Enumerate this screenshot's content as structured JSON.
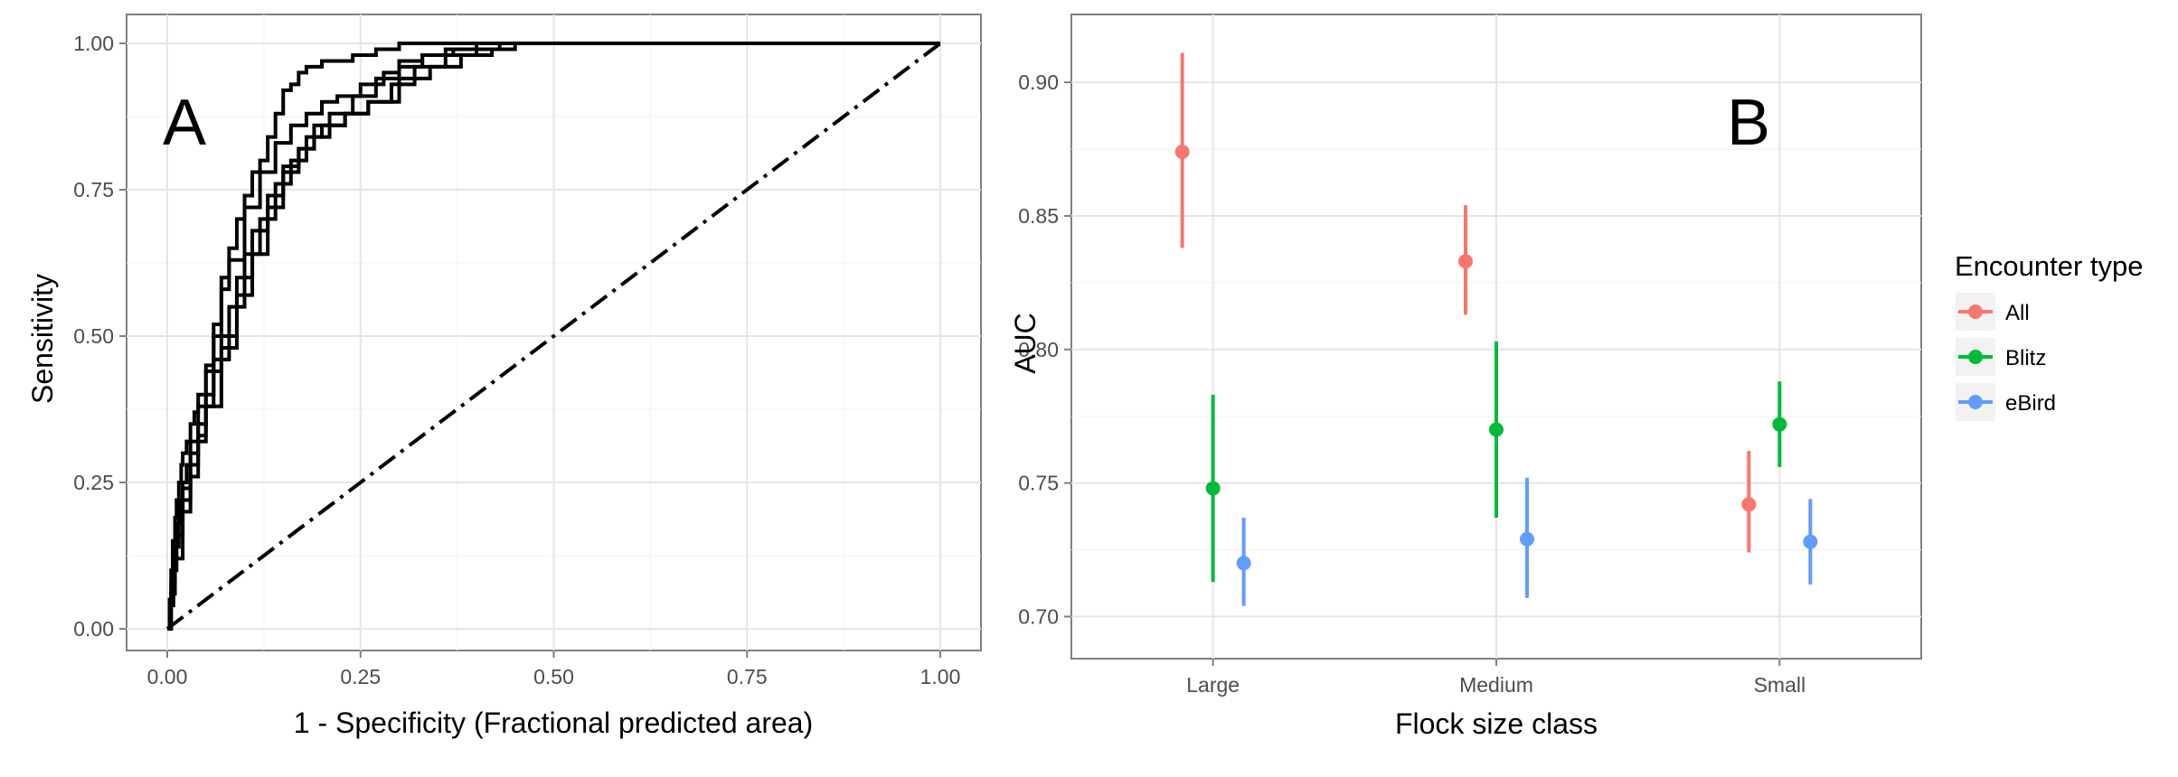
{
  "chart_data": [
    {
      "panel": "A",
      "type": "line",
      "xlabel": "1 - Specificity (Fractional predicted area)",
      "ylabel": "Sensitivity",
      "xlim": [
        0,
        1
      ],
      "ylim": [
        0,
        1
      ],
      "x_ticks": [
        "0.00",
        "0.25",
        "0.50",
        "0.75",
        "1.00"
      ],
      "y_ticks": [
        "0.00",
        "0.25",
        "0.50",
        "0.75",
        "1.00"
      ],
      "grid": true,
      "reference_line": {
        "x": [
          0,
          1
        ],
        "y": [
          0,
          1
        ],
        "style": "dash-dot"
      },
      "series": [
        {
          "x": [
            0,
            0.003,
            0.005,
            0.007,
            0.01,
            0.012,
            0.015,
            0.018,
            0.02,
            0.025,
            0.03,
            0.035,
            0.04,
            0.05,
            0.06,
            0.07,
            0.08,
            0.09,
            0.1,
            0.11,
            0.12,
            0.13,
            0.14,
            0.15,
            0.16,
            0.17,
            0.18,
            0.2,
            0.22,
            0.24,
            0.27,
            0.3,
            0.35,
            1.0
          ],
          "y": [
            0,
            0.05,
            0.1,
            0.15,
            0.19,
            0.22,
            0.25,
            0.28,
            0.3,
            0.32,
            0.35,
            0.37,
            0.4,
            0.45,
            0.52,
            0.6,
            0.65,
            0.7,
            0.74,
            0.78,
            0.8,
            0.84,
            0.88,
            0.92,
            0.93,
            0.95,
            0.96,
            0.97,
            0.97,
            0.98,
            0.99,
            1.0,
            1.0,
            1.0
          ]
        },
        {
          "x": [
            0,
            0.004,
            0.008,
            0.012,
            0.016,
            0.02,
            0.025,
            0.03,
            0.04,
            0.05,
            0.06,
            0.07,
            0.08,
            0.1,
            0.12,
            0.14,
            0.16,
            0.18,
            0.2,
            0.22,
            0.25,
            0.28,
            0.3,
            0.33,
            0.37,
            0.4,
            1.0
          ],
          "y": [
            0,
            0.05,
            0.12,
            0.18,
            0.22,
            0.25,
            0.28,
            0.32,
            0.38,
            0.44,
            0.5,
            0.58,
            0.63,
            0.72,
            0.78,
            0.83,
            0.86,
            0.88,
            0.9,
            0.91,
            0.93,
            0.95,
            0.97,
            0.98,
            0.99,
            1.0,
            1.0
          ]
        },
        {
          "x": [
            0,
            0.005,
            0.01,
            0.015,
            0.02,
            0.03,
            0.04,
            0.05,
            0.06,
            0.08,
            0.1,
            0.12,
            0.14,
            0.16,
            0.18,
            0.2,
            0.23,
            0.26,
            0.3,
            0.34,
            0.38,
            0.42,
            0.45,
            1.0
          ],
          "y": [
            0,
            0.08,
            0.14,
            0.2,
            0.24,
            0.3,
            0.35,
            0.4,
            0.46,
            0.55,
            0.64,
            0.7,
            0.76,
            0.8,
            0.84,
            0.86,
            0.88,
            0.9,
            0.94,
            0.96,
            0.98,
            0.99,
            1.0,
            1.0
          ]
        },
        {
          "x": [
            0,
            0.005,
            0.01,
            0.02,
            0.03,
            0.04,
            0.05,
            0.07,
            0.09,
            0.11,
            0.13,
            0.15,
            0.17,
            0.19,
            0.21,
            0.24,
            0.27,
            0.3,
            0.33,
            0.36,
            0.4,
            1.0
          ],
          "y": [
            0,
            0.06,
            0.12,
            0.2,
            0.26,
            0.32,
            0.38,
            0.48,
            0.57,
            0.64,
            0.72,
            0.78,
            0.82,
            0.86,
            0.88,
            0.91,
            0.94,
            0.96,
            0.98,
            0.99,
            1.0,
            1.0
          ]
        },
        {
          "x": [
            0,
            0.004,
            0.008,
            0.012,
            0.02,
            0.03,
            0.04,
            0.05,
            0.06,
            0.07,
            0.09,
            0.11,
            0.13,
            0.15,
            0.17,
            0.19,
            0.21,
            0.23,
            0.26,
            0.29,
            0.32,
            0.36,
            0.4,
            0.43,
            1.0
          ],
          "y": [
            0,
            0.04,
            0.1,
            0.16,
            0.22,
            0.28,
            0.33,
            0.38,
            0.44,
            0.5,
            0.6,
            0.68,
            0.74,
            0.79,
            0.82,
            0.84,
            0.86,
            0.88,
            0.9,
            0.93,
            0.96,
            0.98,
            0.99,
            1.0,
            1.0
          ]
        }
      ]
    },
    {
      "panel": "B",
      "type": "scatter",
      "xlabel": "Flock size class",
      "ylabel": "AUC",
      "ylim": [
        0.69,
        0.92
      ],
      "categories": [
        "Large",
        "Medium",
        "Small"
      ],
      "y_ticks": [
        "0.70",
        "0.75",
        "0.80",
        "0.85",
        "0.90"
      ],
      "grid": true,
      "legend": {
        "title": "Encounter type",
        "position": "right"
      },
      "series": [
        {
          "name": "All",
          "color": "#F8766D",
          "mean": [
            0.874,
            0.833,
            0.742
          ],
          "lower": [
            0.838,
            0.813,
            0.724
          ],
          "upper": [
            0.911,
            0.854,
            0.762
          ]
        },
        {
          "name": "Blitz",
          "color": "#00BA38",
          "mean": [
            0.748,
            0.77,
            0.772
          ],
          "lower": [
            0.713,
            0.737,
            0.756
          ],
          "upper": [
            0.783,
            0.803,
            0.788
          ]
        },
        {
          "name": "eBird",
          "color": "#619CFF",
          "mean": [
            0.72,
            0.729,
            0.728
          ],
          "lower": [
            0.704,
            0.707,
            0.712
          ],
          "upper": [
            0.737,
            0.752,
            0.744
          ]
        }
      ]
    }
  ],
  "panel_letters": {
    "a": "A",
    "b": "B"
  }
}
